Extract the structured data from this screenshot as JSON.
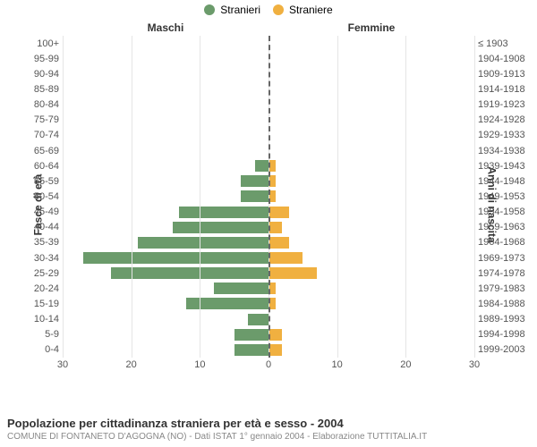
{
  "legend": {
    "male": {
      "label": "Stranieri",
      "color": "#6b9b6b"
    },
    "female": {
      "label": "Straniere",
      "color": "#f0b040"
    }
  },
  "headers": {
    "male": "Maschi",
    "female": "Femmine"
  },
  "y_left_title": "Fasce di età",
  "y_right_title": "Anni di nascita",
  "chart": {
    "type": "population-pyramid",
    "male_max": 30,
    "female_max": 30,
    "male_ticks": [
      30,
      20,
      10,
      0
    ],
    "female_ticks": [
      0,
      10,
      20,
      30
    ],
    "bar_male_color": "#6b9b6b",
    "bar_female_color": "#f0b040",
    "grid_color": "#e5e5e5",
    "center_line_color": "#666666",
    "background": "#ffffff",
    "rows": [
      {
        "age": "100+",
        "year": "≤ 1903",
        "m": 0,
        "f": 0
      },
      {
        "age": "95-99",
        "year": "1904-1908",
        "m": 0,
        "f": 0
      },
      {
        "age": "90-94",
        "year": "1909-1913",
        "m": 0,
        "f": 0
      },
      {
        "age": "85-89",
        "year": "1914-1918",
        "m": 0,
        "f": 0
      },
      {
        "age": "80-84",
        "year": "1919-1923",
        "m": 0,
        "f": 0
      },
      {
        "age": "75-79",
        "year": "1924-1928",
        "m": 0,
        "f": 0
      },
      {
        "age": "70-74",
        "year": "1929-1933",
        "m": 0,
        "f": 0
      },
      {
        "age": "65-69",
        "year": "1934-1938",
        "m": 0,
        "f": 0
      },
      {
        "age": "60-64",
        "year": "1939-1943",
        "m": 2,
        "f": 1
      },
      {
        "age": "55-59",
        "year": "1944-1948",
        "m": 4,
        "f": 1
      },
      {
        "age": "50-54",
        "year": "1949-1953",
        "m": 4,
        "f": 1
      },
      {
        "age": "45-49",
        "year": "1954-1958",
        "m": 13,
        "f": 3
      },
      {
        "age": "40-44",
        "year": "1959-1963",
        "m": 14,
        "f": 2
      },
      {
        "age": "35-39",
        "year": "1964-1968",
        "m": 19,
        "f": 3
      },
      {
        "age": "30-34",
        "year": "1969-1973",
        "m": 27,
        "f": 5
      },
      {
        "age": "25-29",
        "year": "1974-1978",
        "m": 23,
        "f": 7
      },
      {
        "age": "20-24",
        "year": "1979-1983",
        "m": 8,
        "f": 1
      },
      {
        "age": "15-19",
        "year": "1984-1988",
        "m": 12,
        "f": 1
      },
      {
        "age": "10-14",
        "year": "1989-1993",
        "m": 3,
        "f": 0
      },
      {
        "age": "5-9",
        "year": "1994-1998",
        "m": 5,
        "f": 2
      },
      {
        "age": "0-4",
        "year": "1999-2003",
        "m": 5,
        "f": 2
      }
    ]
  },
  "footer": {
    "line1": "Popolazione per cittadinanza straniera per età e sesso - 2004",
    "line2": "COMUNE DI FONTANETO D'AGOGNA (NO) - Dati ISTAT 1° gennaio 2004 - Elaborazione TUTTITALIA.IT"
  }
}
